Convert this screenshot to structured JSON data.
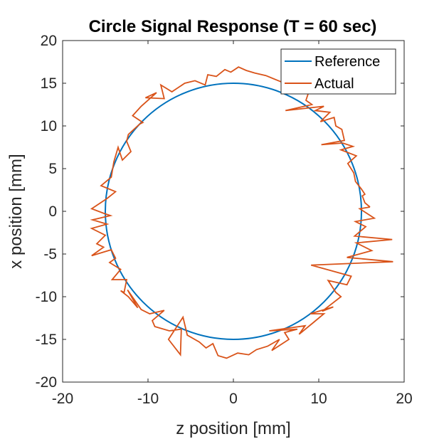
{
  "chart_data": {
    "type": "line",
    "title": "Circle Signal Response (T = 60 sec)",
    "xlabel": "z position [mm]",
    "ylabel": "x position [mm]",
    "xlim": [
      -20,
      20
    ],
    "ylim": [
      -20,
      20
    ],
    "xticks": [
      -20,
      -10,
      0,
      10,
      20
    ],
    "yticks": [
      -20,
      -15,
      -10,
      -5,
      0,
      5,
      10,
      15,
      20
    ],
    "grid": false,
    "legend_position": "top-right",
    "series": [
      {
        "name": "Reference",
        "color": "#0072BD",
        "shape": "circle",
        "center": [
          0,
          0
        ],
        "radius": 15
      },
      {
        "name": "Actual",
        "color": "#D95319",
        "points": [
          [
            16.0,
            0.5
          ],
          [
            15.4,
            1.0
          ],
          [
            15.1,
            1.8
          ],
          [
            15.4,
            2.0
          ],
          [
            15.0,
            2.6
          ],
          [
            14.3,
            3.5
          ],
          [
            14.1,
            4.5
          ],
          [
            13.4,
            5.6
          ],
          [
            14.4,
            6.5
          ],
          [
            12.6,
            7.2
          ],
          [
            14.0,
            7.6
          ],
          [
            12.8,
            8.0
          ],
          [
            10.3,
            7.8
          ],
          [
            13.0,
            8.3
          ],
          [
            12.7,
            9.6
          ],
          [
            12.0,
            10.0
          ],
          [
            11.8,
            11.0
          ],
          [
            10.2,
            10.5
          ],
          [
            11.3,
            11.6
          ],
          [
            9.6,
            11.8
          ],
          [
            10.6,
            12.3
          ],
          [
            6.1,
            11.8
          ],
          [
            9.2,
            12.5
          ],
          [
            8.5,
            13.0
          ],
          [
            8.9,
            14.2
          ],
          [
            7.4,
            14.0
          ],
          [
            6.5,
            14.8
          ],
          [
            5.5,
            15.2
          ],
          [
            3.8,
            15.9
          ],
          [
            2.5,
            16.2
          ],
          [
            1.5,
            16.5
          ],
          [
            0.6,
            16.9
          ],
          [
            -0.3,
            16.3
          ],
          [
            -1.0,
            16.6
          ],
          [
            -2.0,
            15.8
          ],
          [
            -3.0,
            16.0
          ],
          [
            -3.3,
            14.8
          ],
          [
            -4.5,
            15.3
          ],
          [
            -5.7,
            15.0
          ],
          [
            -7.2,
            14.0
          ],
          [
            -8.5,
            14.8
          ],
          [
            -8.1,
            13.2
          ],
          [
            -10.3,
            13.3
          ],
          [
            -9.0,
            13.9
          ],
          [
            -10.8,
            12.3
          ],
          [
            -11.8,
            11.2
          ],
          [
            -10.6,
            10.4
          ],
          [
            -11.0,
            10.2
          ],
          [
            -12.3,
            9.0
          ],
          [
            -12.5,
            8.2
          ],
          [
            -12.0,
            7.0
          ],
          [
            -13.0,
            6.0
          ],
          [
            -13.5,
            7.5
          ],
          [
            -14.0,
            5.8
          ],
          [
            -14.3,
            4.0
          ],
          [
            -15.5,
            3.0
          ],
          [
            -13.8,
            2.3
          ],
          [
            -14.8,
            1.5
          ],
          [
            -16.6,
            0.3
          ],
          [
            -15.0,
            -0.3
          ],
          [
            -14.4,
            -0.5
          ],
          [
            -16.5,
            -1.0
          ],
          [
            -14.8,
            -1.5
          ],
          [
            -16.6,
            -2.0
          ],
          [
            -15.0,
            -2.8
          ],
          [
            -16.0,
            -3.8
          ],
          [
            -15.2,
            -4.2
          ],
          [
            -16.6,
            -5.2
          ],
          [
            -14.3,
            -4.5
          ],
          [
            -13.8,
            -5.5
          ],
          [
            -14.5,
            -6.0
          ],
          [
            -13.2,
            -6.8
          ],
          [
            -14.2,
            -8.0
          ],
          [
            -12.5,
            -8.0
          ],
          [
            -12.8,
            -9.5
          ],
          [
            -13.2,
            -9.3
          ],
          [
            -12.3,
            -10.0
          ],
          [
            -11.2,
            -11.3
          ],
          [
            -12.4,
            -9.2
          ],
          [
            -10.8,
            -11.5
          ],
          [
            -9.8,
            -12.0
          ],
          [
            -8.1,
            -11.6
          ],
          [
            -9.5,
            -12.8
          ],
          [
            -9.2,
            -13.5
          ],
          [
            -7.5,
            -14.0
          ],
          [
            -6.1,
            -13.8
          ],
          [
            -6.2,
            -16.8
          ],
          [
            -7.6,
            -15.0
          ],
          [
            -5.9,
            -12.4
          ],
          [
            -5.4,
            -14.5
          ],
          [
            -4.0,
            -15.3
          ],
          [
            -3.2,
            -16.0
          ],
          [
            -2.4,
            -15.5
          ],
          [
            -1.8,
            -16.9
          ],
          [
            -0.8,
            -17.2
          ],
          [
            0.5,
            -16.6
          ],
          [
            1.8,
            -16.8
          ],
          [
            2.7,
            -16.2
          ],
          [
            4.0,
            -15.8
          ],
          [
            5.4,
            -15.0
          ],
          [
            4.5,
            -16.3
          ],
          [
            6.5,
            -15.0
          ],
          [
            6.0,
            -14.2
          ],
          [
            7.5,
            -13.8
          ],
          [
            4.2,
            -14.0
          ],
          [
            8.4,
            -13.4
          ],
          [
            7.7,
            -14.4
          ],
          [
            9.4,
            -13.0
          ],
          [
            10.6,
            -12.0
          ],
          [
            9.0,
            -12.0
          ],
          [
            11.7,
            -11.2
          ],
          [
            10.4,
            -11.7
          ],
          [
            12.6,
            -10.0
          ],
          [
            12.0,
            -9.5
          ],
          [
            11.1,
            -8.1
          ],
          [
            13.3,
            -8.6
          ],
          [
            13.8,
            -7.6
          ],
          [
            9.1,
            -6.3
          ],
          [
            18.7,
            -5.9
          ],
          [
            13.3,
            -5.4
          ],
          [
            16.2,
            -4.6
          ],
          [
            14.4,
            -3.7
          ],
          [
            18.6,
            -3.3
          ],
          [
            14.2,
            -2.9
          ],
          [
            15.5,
            -1.8
          ],
          [
            14.3,
            -1.2
          ],
          [
            16.5,
            -0.8
          ],
          [
            14.8,
            0.3
          ],
          [
            16.0,
            0.5
          ]
        ]
      }
    ]
  }
}
